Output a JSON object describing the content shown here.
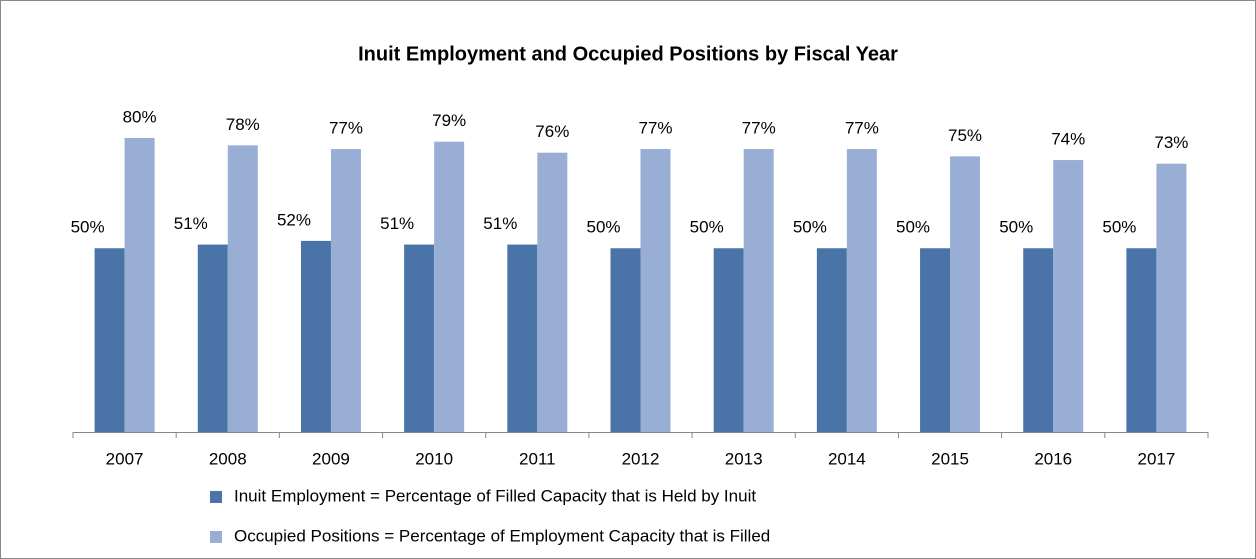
{
  "chart_data": {
    "type": "bar",
    "title": "Inuit Employment and Occupied Positions by Fiscal Year",
    "categories": [
      "2007",
      "2008",
      "2009",
      "2010",
      "2011",
      "2012",
      "2013",
      "2014",
      "2015",
      "2016",
      "2017"
    ],
    "series": [
      {
        "name": "Inuit Employment = Percentage of Filled Capacity that is Held by Inuit",
        "color": "#4a74a8",
        "values": [
          50,
          51,
          52,
          51,
          51,
          50,
          50,
          50,
          50,
          50,
          50
        ],
        "value_labels": [
          "50%",
          "51%",
          "52%",
          "51%",
          "51%",
          "50%",
          "50%",
          "50%",
          "50%",
          "50%",
          "50%"
        ]
      },
      {
        "name": "Occupied Positions = Percentage of Employment Capacity that is Filled",
        "color": "#98aed4",
        "values": [
          80,
          78,
          77,
          79,
          76,
          77,
          77,
          77,
          75,
          74,
          73
        ],
        "value_labels": [
          "80%",
          "78%",
          "77%",
          "79%",
          "76%",
          "77%",
          "77%",
          "77%",
          "75%",
          "74%",
          "73%"
        ]
      }
    ],
    "legend": "bottom"
  }
}
